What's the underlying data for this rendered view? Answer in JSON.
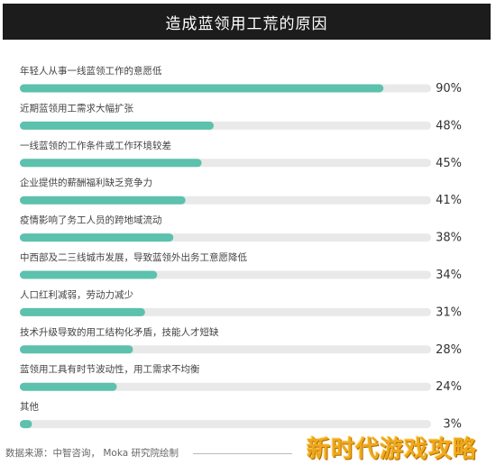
{
  "title": "造成蓝领用工荒的原因",
  "source": "数据来源：中智咨询， Moka 研究院绘制",
  "watermark": "新时代游戏攻略",
  "colors": {
    "bar": "#5cc1ad",
    "track": "#e9e9e9",
    "text": "#444444",
    "value": "#333333"
  },
  "chart_data": {
    "type": "bar",
    "orientation": "horizontal",
    "title": "造成蓝领用工荒的原因",
    "categories": [
      "年轻人从事一线蓝领工作的意愿低",
      "近期蓝领用工需求大幅扩张",
      "一线蓝领的工作条件或工作环境较差",
      "企业提供的薪酬福利缺乏竞争力",
      "疫情影响了务工人员的跨地域流动",
      "中西部及二三线城市发展，导致蓝领外出务工意愿降低",
      "人口红利减弱，劳动力减少",
      "技术升级导致的用工结构化矛盾，技能人才短缺",
      "蓝领用工具有时节波动性，用工需求不均衡",
      "其他"
    ],
    "values": [
      90,
      48,
      45,
      41,
      38,
      34,
      31,
      28,
      24,
      3
    ],
    "labels": [
      "90%",
      "48%",
      "45%",
      "41%",
      "38%",
      "34%",
      "31%",
      "28%",
      "24%",
      "3%"
    ],
    "unit": "%",
    "xlim": [
      0,
      100
    ],
    "grid": false,
    "legend": "none"
  }
}
